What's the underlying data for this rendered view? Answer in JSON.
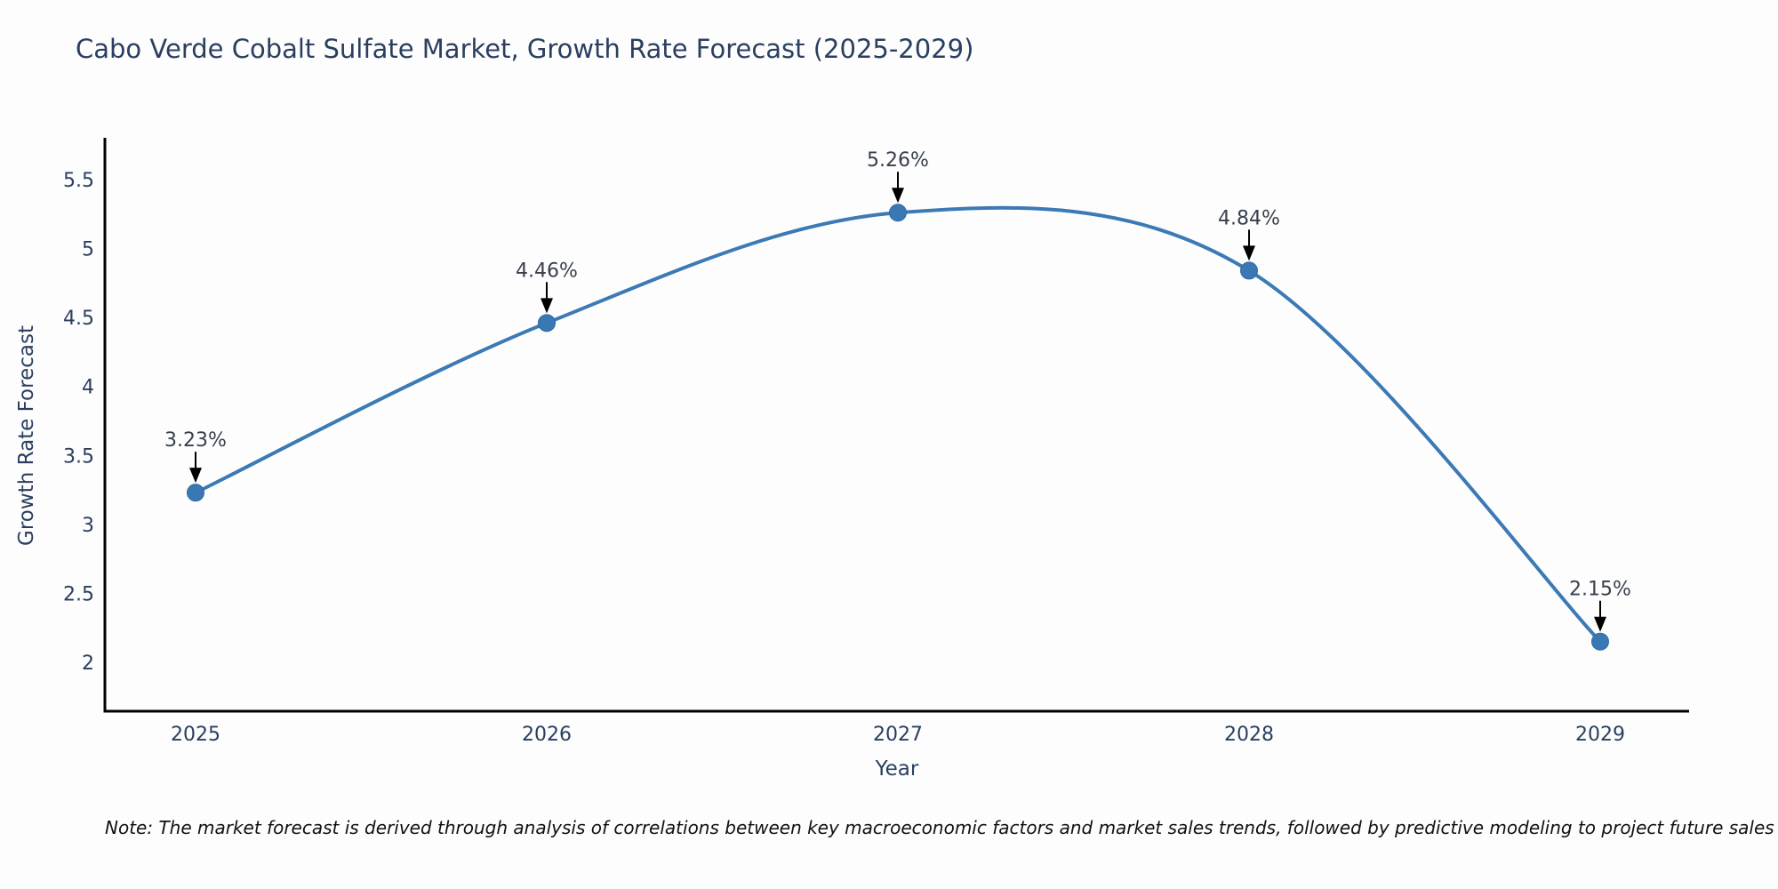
{
  "title": "Cabo Verde Cobalt Sulfate Market, Growth Rate Forecast (2025-2029)",
  "note": "Note: The market forecast is derived through analysis of correlations between key macroeconomic factors and market sales trends, followed by predictive modeling to project future sales",
  "chart_data": {
    "type": "line",
    "title": "Cabo Verde Cobalt Sulfate Market, Growth Rate Forecast (2025-2029)",
    "categories": [
      2025,
      2026,
      2027,
      2028,
      2029
    ],
    "values": [
      3.23,
      4.46,
      5.26,
      4.84,
      2.15
    ],
    "point_labels": [
      "3.23%",
      "4.46%",
      "5.26%",
      "4.84%",
      "2.15%"
    ],
    "xlabel": "Year",
    "ylabel": "Growth Rate Forecast",
    "yticks": [
      2,
      2.5,
      3,
      3.5,
      4,
      4.5,
      5,
      5.5
    ],
    "ylim": [
      1.64,
      5.78
    ],
    "line_shape": "spline",
    "grid": false,
    "legend": "none",
    "annotations_have_arrows": true,
    "colors": {
      "line": "#3c7ab5",
      "marker_fill": "#3a78b4",
      "marker_edge": "#2e69a3",
      "axis_line": "#000000",
      "tick_text": "#2a3f5f",
      "annotation_text": "#38404d",
      "arrow": "#000000",
      "background": "#fdfdfd"
    }
  }
}
